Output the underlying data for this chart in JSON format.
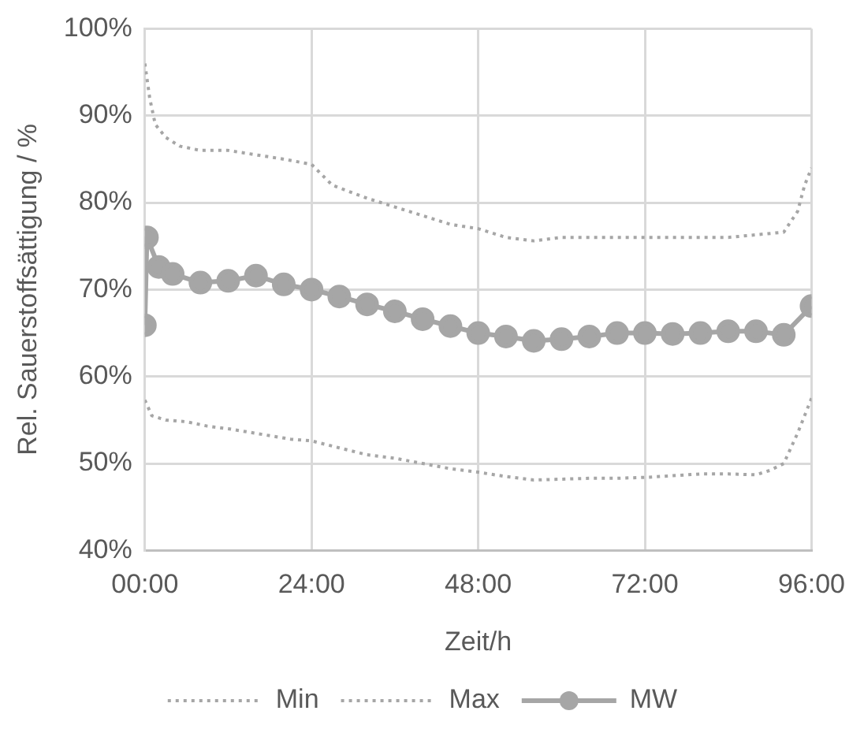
{
  "chart_data": {
    "type": "line",
    "xlabel": "Zeit/h",
    "ylabel": "Rel. Sauerstoffsättigung / %",
    "xlim": [
      0,
      96
    ],
    "xticks": [
      {
        "value": 0,
        "label": "00:00"
      },
      {
        "value": 24,
        "label": "24:00"
      },
      {
        "value": 48,
        "label": "48:00"
      },
      {
        "value": 72,
        "label": "72:00"
      },
      {
        "value": 96,
        "label": "96:00"
      }
    ],
    "ylim": [
      40,
      100
    ],
    "yticks": [
      {
        "value": 40,
        "label": "40%"
      },
      {
        "value": 50,
        "label": "50%"
      },
      {
        "value": 60,
        "label": "60%"
      },
      {
        "value": 70,
        "label": "70%"
      },
      {
        "value": 80,
        "label": "80%"
      },
      {
        "value": 90,
        "label": "90%"
      },
      {
        "value": 100,
        "label": "100%"
      }
    ],
    "grid": true,
    "legend": "bottom",
    "series": [
      {
        "name": "Min",
        "color": "#a6a6a6",
        "line_style": "dotted",
        "marker": "none",
        "x": [
          0,
          1,
          3,
          6,
          9,
          12,
          15,
          18,
          21,
          24,
          28,
          32,
          36,
          40,
          44,
          48,
          52,
          56,
          60,
          64,
          68,
          72,
          76,
          80,
          84,
          88,
          90,
          92,
          94,
          95,
          96
        ],
        "values": [
          57.3,
          55.5,
          55,
          54.8,
          54.3,
          54,
          53.6,
          53.2,
          52.8,
          52.6,
          51.8,
          51,
          50.6,
          50,
          49.4,
          49,
          48.5,
          48.1,
          48.2,
          48.3,
          48.3,
          48.4,
          48.6,
          48.8,
          48.8,
          48.7,
          49.2,
          50,
          53.5,
          55.5,
          57.5
        ]
      },
      {
        "name": "Max",
        "color": "#a6a6a6",
        "line_style": "dotted",
        "marker": "none",
        "x": [
          0,
          0.7,
          1.5,
          3,
          5,
          8,
          12,
          16,
          20,
          24,
          27,
          32,
          36,
          40,
          44,
          48,
          52,
          56,
          60,
          64,
          68,
          72,
          76,
          80,
          84,
          88,
          92,
          94,
          95,
          96
        ],
        "values": [
          96,
          92,
          89,
          87.5,
          86.5,
          86,
          86,
          85.5,
          85,
          84.4,
          82,
          80.5,
          79.5,
          78.5,
          77.5,
          77,
          76,
          75.6,
          76,
          76,
          76,
          76,
          76,
          76,
          76,
          76.3,
          76.6,
          79,
          82,
          84
        ]
      },
      {
        "name": "MW",
        "color": "#a6a6a6",
        "line_style": "solid",
        "marker": "circle",
        "x": [
          0,
          0.3,
          2,
          4,
          8,
          12,
          16,
          20,
          24,
          28,
          32,
          36,
          40,
          44,
          48,
          52,
          56,
          60,
          64,
          68,
          72,
          76,
          80,
          84,
          88,
          92,
          96
        ],
        "values": [
          65.9,
          76,
          72.6,
          71.8,
          70.8,
          71,
          71.6,
          70.6,
          70,
          69.2,
          68.3,
          67.5,
          66.6,
          65.8,
          65,
          64.6,
          64.1,
          64.3,
          64.6,
          65,
          65,
          64.9,
          65,
          65.2,
          65.2,
          64.8,
          68.1
        ]
      }
    ]
  }
}
